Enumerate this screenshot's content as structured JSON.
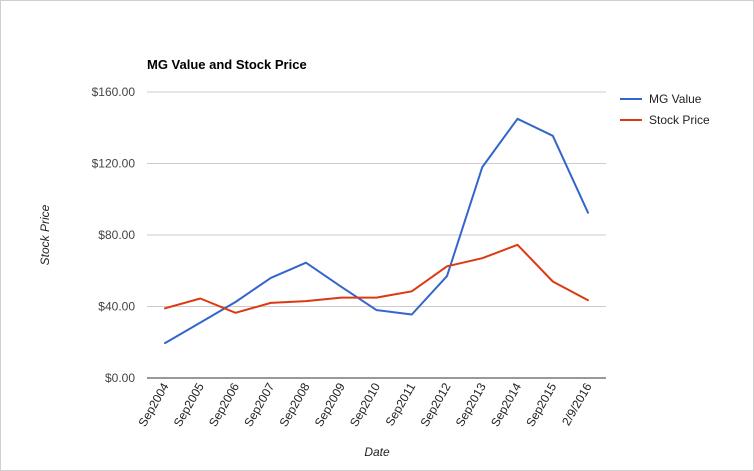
{
  "chart_data": {
    "type": "line",
    "title": "MG Value and Stock Price",
    "xlabel": "Date",
    "ylabel": "Stock Price",
    "categories": [
      "Sep2004",
      "Sep2005",
      "Sep2006",
      "Sep2007",
      "Sep2008",
      "Sep2009",
      "Sep2010",
      "Sep2011",
      "Sep2012",
      "Sep2013",
      "Sep2014",
      "Sep2015",
      "2/9/2016"
    ],
    "series": [
      {
        "name": "MG Value",
        "color": "#3366cc",
        "values": [
          19.5,
          31,
          42.5,
          56,
          64.5,
          51,
          38,
          35.5,
          57,
          118,
          145,
          135.5,
          92.5
        ]
      },
      {
        "name": "Stock Price",
        "color": "#dc3912",
        "values": [
          39,
          44.5,
          36.5,
          42,
          43,
          45,
          45,
          48.5,
          62.5,
          67,
          74.5,
          54,
          43.5
        ]
      }
    ],
    "ylim": [
      0,
      160
    ],
    "yticks": [
      0,
      40,
      80,
      120,
      160
    ],
    "ytick_labels": [
      "$0.00",
      "$40.00",
      "$80.00",
      "$120.00",
      "$160.00"
    ],
    "grid": true,
    "legend_position": "right"
  }
}
